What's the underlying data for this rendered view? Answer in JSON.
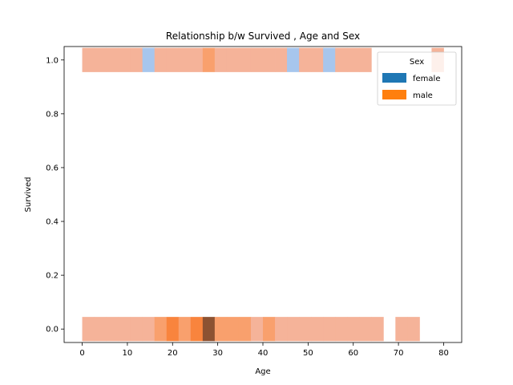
{
  "chart_data": {
    "type": "heatmap",
    "title": "Relationship b/w Survived , Age and Sex",
    "xlabel": "Age",
    "ylabel": "Survived",
    "xlim": [
      -4,
      84
    ],
    "ylim": [
      -0.05,
      1.05
    ],
    "xticks": [
      0,
      10,
      20,
      30,
      40,
      50,
      60,
      70,
      80
    ],
    "yticks": [
      0.0,
      0.2,
      0.4,
      0.6,
      0.8,
      1.0
    ],
    "xtick_labels": [
      "0",
      "10",
      "20",
      "30",
      "40",
      "50",
      "60",
      "70",
      "80"
    ],
    "ytick_labels": [
      "0.0",
      "0.2",
      "0.4",
      "0.6",
      "0.8",
      "1.0"
    ],
    "bin_width": 2.67,
    "cell_height": 0.09,
    "legend": {
      "title": "Sex",
      "placement": "top-right",
      "entries": [
        {
          "label": "female",
          "color": "#1f77b4"
        },
        {
          "label": "male",
          "color": "#ff7f0e"
        }
      ]
    },
    "colors": {
      "female_light": "#a7c6ed",
      "male_light": "#f5b399",
      "male_medium": "#f9a06d",
      "male_strong": "#f9843d",
      "overlap_dark": "#8c5232"
    },
    "cells": [
      {
        "x": 0.0,
        "y": 1,
        "color": "male_light"
      },
      {
        "x": 2.67,
        "y": 1,
        "color": "male_light"
      },
      {
        "x": 5.33,
        "y": 1,
        "color": "male_light"
      },
      {
        "x": 8.0,
        "y": 1,
        "color": "male_light"
      },
      {
        "x": 10.67,
        "y": 1,
        "color": "male_light"
      },
      {
        "x": 13.33,
        "y": 1,
        "color": "female_light"
      },
      {
        "x": 16.0,
        "y": 1,
        "color": "male_light"
      },
      {
        "x": 18.67,
        "y": 1,
        "color": "male_light"
      },
      {
        "x": 21.33,
        "y": 1,
        "color": "male_light"
      },
      {
        "x": 24.0,
        "y": 1,
        "color": "male_light"
      },
      {
        "x": 26.67,
        "y": 1,
        "color": "male_medium"
      },
      {
        "x": 29.33,
        "y": 1,
        "color": "male_light"
      },
      {
        "x": 32.0,
        "y": 1,
        "color": "male_light"
      },
      {
        "x": 34.67,
        "y": 1,
        "color": "male_light"
      },
      {
        "x": 37.33,
        "y": 1,
        "color": "male_light"
      },
      {
        "x": 40.0,
        "y": 1,
        "color": "male_light"
      },
      {
        "x": 42.67,
        "y": 1,
        "color": "male_light"
      },
      {
        "x": 45.33,
        "y": 1,
        "color": "female_light"
      },
      {
        "x": 48.0,
        "y": 1,
        "color": "male_light"
      },
      {
        "x": 50.67,
        "y": 1,
        "color": "male_light"
      },
      {
        "x": 53.33,
        "y": 1,
        "color": "female_light"
      },
      {
        "x": 56.0,
        "y": 1,
        "color": "male_light"
      },
      {
        "x": 58.67,
        "y": 1,
        "color": "male_light"
      },
      {
        "x": 61.33,
        "y": 1,
        "color": "male_light"
      },
      {
        "x": 77.33,
        "y": 1,
        "color": "male_light"
      },
      {
        "x": 0.0,
        "y": 0,
        "color": "male_light"
      },
      {
        "x": 2.67,
        "y": 0,
        "color": "male_light"
      },
      {
        "x": 5.33,
        "y": 0,
        "color": "male_light"
      },
      {
        "x": 8.0,
        "y": 0,
        "color": "male_light"
      },
      {
        "x": 10.67,
        "y": 0,
        "color": "male_light"
      },
      {
        "x": 13.33,
        "y": 0,
        "color": "male_light"
      },
      {
        "x": 16.0,
        "y": 0,
        "color": "male_medium"
      },
      {
        "x": 18.67,
        "y": 0,
        "color": "male_strong"
      },
      {
        "x": 21.33,
        "y": 0,
        "color": "male_medium"
      },
      {
        "x": 24.0,
        "y": 0,
        "color": "male_strong"
      },
      {
        "x": 26.67,
        "y": 0,
        "color": "overlap_dark"
      },
      {
        "x": 29.33,
        "y": 0,
        "color": "male_medium"
      },
      {
        "x": 32.0,
        "y": 0,
        "color": "male_medium"
      },
      {
        "x": 34.67,
        "y": 0,
        "color": "male_medium"
      },
      {
        "x": 37.33,
        "y": 0,
        "color": "male_light"
      },
      {
        "x": 40.0,
        "y": 0,
        "color": "male_medium"
      },
      {
        "x": 42.67,
        "y": 0,
        "color": "male_light"
      },
      {
        "x": 45.33,
        "y": 0,
        "color": "male_light"
      },
      {
        "x": 48.0,
        "y": 0,
        "color": "male_light"
      },
      {
        "x": 50.67,
        "y": 0,
        "color": "male_light"
      },
      {
        "x": 53.33,
        "y": 0,
        "color": "male_light"
      },
      {
        "x": 56.0,
        "y": 0,
        "color": "male_light"
      },
      {
        "x": 58.67,
        "y": 0,
        "color": "male_light"
      },
      {
        "x": 61.33,
        "y": 0,
        "color": "male_light"
      },
      {
        "x": 64.0,
        "y": 0,
        "color": "male_light"
      },
      {
        "x": 69.33,
        "y": 0,
        "color": "male_light"
      },
      {
        "x": 72.0,
        "y": 0,
        "color": "male_light"
      }
    ]
  }
}
